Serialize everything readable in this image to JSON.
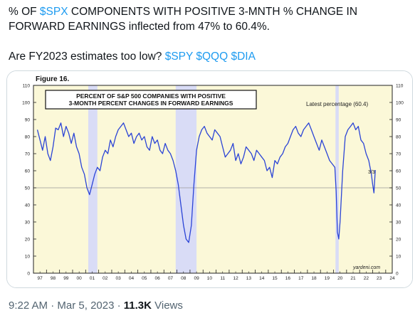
{
  "tweet": {
    "line1": {
      "pre": "% OF ",
      "tag": "$SPX",
      "post": " COMPONENTS WITH POSITIVE 3-MNTH % CHANGE IN FORWARD EARNINGS inflected from 47% to 60.4%."
    },
    "line2": {
      "text": "Are FY2023 estimates too low? ",
      "tags": [
        "$SPY",
        "$QQQ",
        "$DIA"
      ]
    }
  },
  "meta": {
    "time": "9:22 AM",
    "sep1": " · ",
    "date": "Mar 5, 2023",
    "sep2": " · ",
    "views_count": "11.3K",
    "views_label": " Views"
  },
  "figure": {
    "label": "Figure 16.",
    "title_line1": "PERCENT OF S&P 500 COMPANIES WITH POSITIVE",
    "title_line2": "3-MONTH PERCENT CHANGES IN FORWARD EARNINGS",
    "latest": "Latest percentage (60.4)",
    "end_label": "3/3",
    "source": "yardeni.com"
  },
  "colors": {
    "accent": "#1d9bf0",
    "text": "#0f1419",
    "muted": "#536471",
    "chart_bg": "#fbf8d8",
    "line": "#2b44d6",
    "recession": "#d9dcf6"
  },
  "chart_data": {
    "type": "line",
    "title": "PERCENT OF S&P 500 COMPANIES WITH POSITIVE 3-MONTH PERCENT CHANGES IN FORWARD EARNINGS",
    "xlabel": "",
    "ylabel": "",
    "ylim": [
      0,
      110
    ],
    "xlim": [
      1997.0,
      2024.5
    ],
    "yticks": [
      0,
      10,
      20,
      30,
      40,
      50,
      60,
      70,
      80,
      90,
      100,
      110
    ],
    "xtick_labels": [
      "97",
      "98",
      "99",
      "00",
      "01",
      "02",
      "03",
      "04",
      "05",
      "06",
      "07",
      "08",
      "09",
      "10",
      "11",
      "12",
      "13",
      "14",
      "15",
      "16",
      "17",
      "18",
      "19",
      "20",
      "21",
      "22",
      "23",
      "24"
    ],
    "reference_line": 50,
    "recessions": [
      [
        2001.2,
        2001.9
      ],
      [
        2007.9,
        2009.5
      ],
      [
        2020.15,
        2020.4
      ]
    ],
    "grid": false,
    "series": [
      {
        "x": [
          1997.3,
          1997.5,
          1997.7,
          1997.9,
          1998.1,
          1998.3,
          1998.5,
          1998.7,
          1998.9,
          1999.1,
          1999.3,
          1999.5,
          1999.7,
          1999.9,
          2000.1,
          2000.3,
          2000.5,
          2000.7,
          2000.9,
          2001.1,
          2001.3,
          2001.5,
          2001.7,
          2001.9,
          2002.1,
          2002.3,
          2002.5,
          2002.7,
          2002.9,
          2003.1,
          2003.3,
          2003.5,
          2003.7,
          2003.9,
          2004.1,
          2004.3,
          2004.5,
          2004.7,
          2004.9,
          2005.1,
          2005.3,
          2005.5,
          2005.7,
          2005.9,
          2006.1,
          2006.3,
          2006.5,
          2006.7,
          2006.9,
          2007.1,
          2007.3,
          2007.5,
          2007.7,
          2007.9,
          2008.1,
          2008.3,
          2008.5,
          2008.7,
          2008.9,
          2009.1,
          2009.3,
          2009.5,
          2009.7,
          2009.9,
          2010.1,
          2010.3,
          2010.5,
          2010.7,
          2010.9,
          2011.1,
          2011.3,
          2011.5,
          2011.7,
          2011.9,
          2012.1,
          2012.3,
          2012.5,
          2012.7,
          2012.9,
          2013.1,
          2013.3,
          2013.5,
          2013.7,
          2013.9,
          2014.1,
          2014.3,
          2014.5,
          2014.7,
          2014.9,
          2015.1,
          2015.3,
          2015.5,
          2015.7,
          2015.9,
          2016.1,
          2016.3,
          2016.5,
          2016.7,
          2016.9,
          2017.1,
          2017.3,
          2017.5,
          2017.7,
          2017.9,
          2018.1,
          2018.3,
          2018.5,
          2018.7,
          2018.9,
          2019.1,
          2019.3,
          2019.5,
          2019.7,
          2019.9,
          2020.1,
          2020.2,
          2020.3,
          2020.4,
          2020.5,
          2020.7,
          2020.9,
          2021.1,
          2021.3,
          2021.5,
          2021.7,
          2021.9,
          2022.1,
          2022.3,
          2022.5,
          2022.7,
          2022.9,
          2023.0,
          2023.1,
          2023.2
        ],
        "y": [
          84,
          78,
          72,
          80,
          70,
          66,
          74,
          85,
          84,
          88,
          80,
          86,
          82,
          76,
          82,
          74,
          70,
          62,
          58,
          50,
          46,
          52,
          58,
          62,
          60,
          68,
          72,
          70,
          78,
          74,
          80,
          84,
          86,
          88,
          84,
          80,
          82,
          76,
          80,
          82,
          78,
          80,
          74,
          72,
          80,
          76,
          78,
          72,
          70,
          76,
          72,
          70,
          66,
          60,
          52,
          40,
          28,
          20,
          18,
          28,
          52,
          72,
          80,
          84,
          86,
          82,
          80,
          78,
          84,
          82,
          80,
          74,
          68,
          70,
          72,
          76,
          66,
          70,
          64,
          68,
          74,
          72,
          70,
          66,
          72,
          70,
          68,
          66,
          60,
          62,
          56,
          66,
          64,
          68,
          70,
          74,
          76,
          80,
          84,
          86,
          82,
          80,
          84,
          86,
          88,
          84,
          80,
          76,
          72,
          78,
          74,
          70,
          66,
          64,
          62,
          48,
          24,
          20,
          30,
          60,
          80,
          84,
          86,
          88,
          84,
          86,
          78,
          76,
          70,
          66,
          58,
          52,
          47,
          60.4
        ]
      }
    ]
  }
}
